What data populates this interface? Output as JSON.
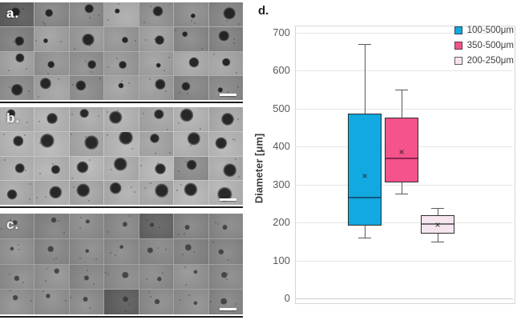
{
  "panels": [
    {
      "label": "a.",
      "label_color": "#ffffff",
      "rows": 4,
      "cols": 7,
      "base_gray": 152,
      "jitter": 22,
      "dark_tile_chance": 0.14,
      "blob_min": 6,
      "blob_max": 16,
      "blob_color": "30,30,30",
      "blob_alpha": 0.95,
      "seed": 7
    },
    {
      "label": "b.",
      "label_color": "#f5f5f5",
      "rows": 4,
      "cols": 7,
      "base_gray": 176,
      "jitter": 12,
      "dark_tile_chance": 0.05,
      "blob_min": 11,
      "blob_max": 19,
      "blob_color": "32,32,32",
      "blob_alpha": 0.95,
      "seed": 13
    },
    {
      "label": "c.",
      "label_color": "#f2f2f2",
      "rows": 4,
      "cols": 7,
      "base_gray": 141,
      "jitter": 9,
      "dark_tile_chance": 0.05,
      "blob_min": 5,
      "blob_max": 9,
      "blob_color": "52,52,52",
      "blob_alpha": 0.82,
      "seed": 29
    }
  ],
  "chart_data": {
    "type": "box",
    "panel_label": "d.",
    "ylabel": "Diameter [μm]",
    "ylim": [
      0,
      700
    ],
    "yticks": [
      0,
      100,
      200,
      300,
      400,
      500,
      600,
      700
    ],
    "grid": true,
    "legend_position": "top-right",
    "series": [
      {
        "name": "100-500μm",
        "fill": "#12A9E0",
        "median_color": "#14597F",
        "low": 160,
        "q1": 192,
        "median": 265,
        "mean": 322,
        "q3": 487,
        "high": 670
      },
      {
        "name": "350-500μm",
        "fill": "#F4538C",
        "median_color": "#8E2450",
        "low": 277,
        "q1": 305,
        "median": 370,
        "mean": 385,
        "q3": 477,
        "high": 550
      },
      {
        "name": "200-250μm",
        "fill": "#F6E4EE",
        "median_color": "#6f6f6f",
        "low": 150,
        "q1": 170,
        "median": 196,
        "mean": 195,
        "q3": 220,
        "high": 238
      }
    ]
  }
}
